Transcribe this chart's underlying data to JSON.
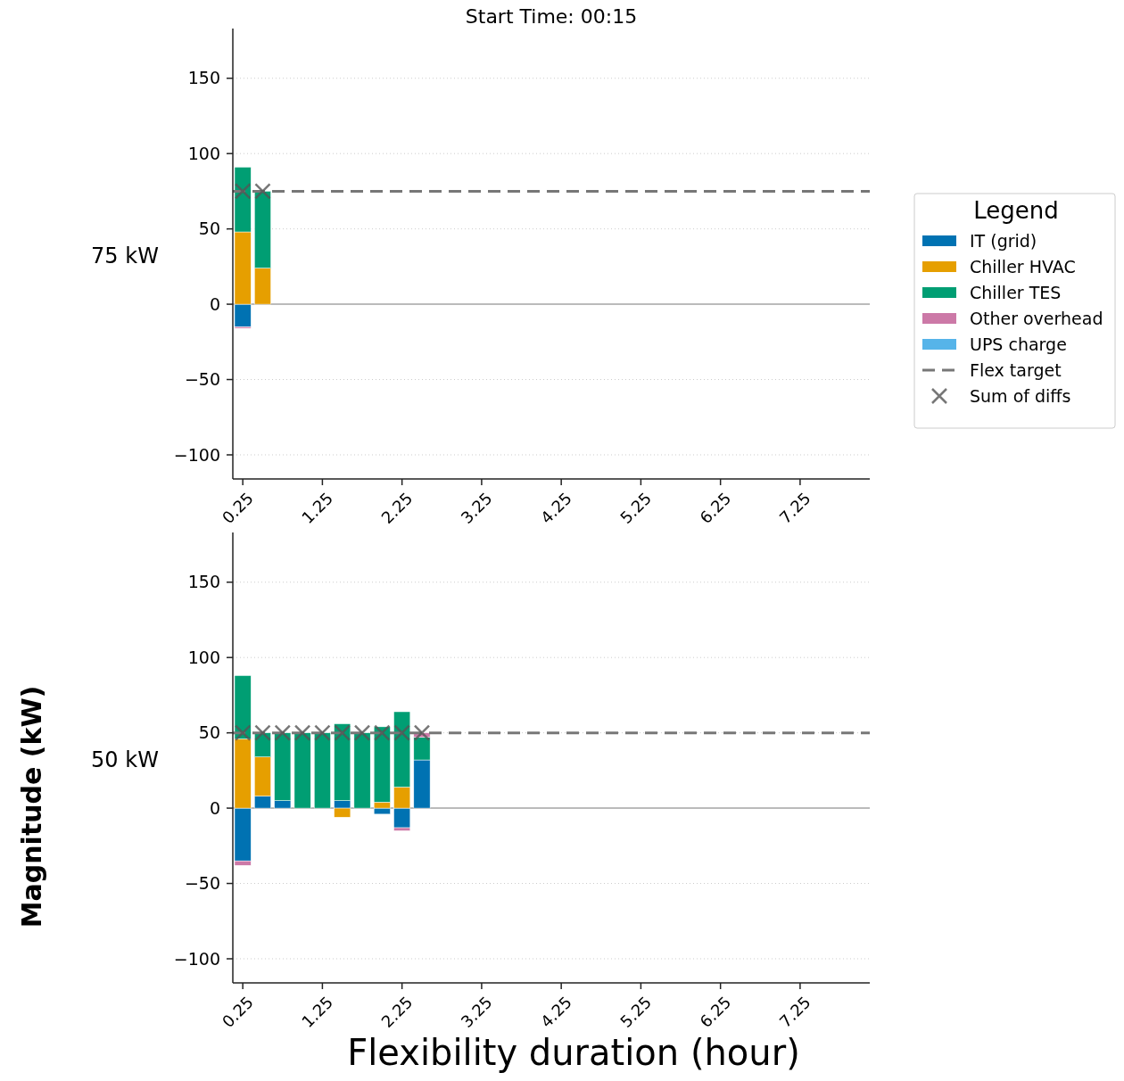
{
  "chart_data": [
    {
      "type": "bar",
      "title": "Start Time: 00:15",
      "stacked": true,
      "x": [
        0.25,
        0.5
      ],
      "xlim": [
        0.125,
        8.125
      ],
      "xticks": [
        0.25,
        1.25,
        2.25,
        3.25,
        4.25,
        5.25,
        6.25,
        7.25
      ],
      "ylim": [
        -116,
        183
      ],
      "yticks": [
        -100,
        -50,
        0,
        50,
        100,
        150
      ],
      "grid": "y",
      "legend": "right",
      "legend_title": "Legend",
      "annotations": [
        "75 kW"
      ],
      "series": [
        {
          "name": "IT (grid)",
          "color": "#0072b2",
          "values": [
            -15,
            0
          ]
        },
        {
          "name": "Chiller HVAC",
          "color": "#e69f00",
          "values": [
            48,
            24
          ]
        },
        {
          "name": "Chiller TES",
          "color": "#009e73",
          "values": [
            43,
            51
          ]
        },
        {
          "name": "Other overhead",
          "color": "#cc79a7",
          "values": [
            -1,
            0
          ]
        },
        {
          "name": "UPS charge",
          "color": "#56b4e9",
          "values": [
            0,
            0
          ]
        },
        {
          "name": "Sum of diffs",
          "type": "scatter",
          "marker": "cross",
          "color": "#555555",
          "values": [
            75,
            75
          ]
        }
      ],
      "ref_lines": [
        {
          "axis": "y",
          "value": 0,
          "color": "#bbbbbb",
          "line_style": "solid"
        },
        {
          "axis": "y",
          "value": 75,
          "label": "Flex target",
          "color": "#777777",
          "line_style": "dashed"
        }
      ]
    },
    {
      "type": "bar",
      "xlabel": "Flexibility duration (hour)",
      "ylabel": "Magnitude (kW)",
      "stacked": true,
      "x": [
        0.25,
        0.5,
        0.75,
        1.0,
        1.25,
        1.5,
        1.75,
        2.0,
        2.25,
        2.5
      ],
      "xlim": [
        0.125,
        8.125
      ],
      "xticks": [
        0.25,
        1.25,
        2.25,
        3.25,
        4.25,
        5.25,
        6.25,
        7.25
      ],
      "ylim": [
        -116,
        183
      ],
      "yticks": [
        -100,
        -50,
        0,
        50,
        100,
        150
      ],
      "grid": "y",
      "annotations": [
        "50 kW"
      ],
      "series": [
        {
          "color": "#0072b2",
          "values": [
            -35,
            8,
            5,
            0,
            0,
            5,
            0,
            -4,
            -13,
            32
          ]
        },
        {
          "color": "#e69f00",
          "values": [
            46,
            26,
            0,
            0,
            0,
            -6,
            0,
            4,
            14,
            0
          ]
        },
        {
          "color": "#009e73",
          "values": [
            42,
            16,
            45,
            50,
            50,
            51,
            50,
            50,
            50,
            15
          ]
        },
        {
          "color": "#cc79a7",
          "values": [
            -3,
            0,
            0,
            0,
            0,
            0,
            0,
            0,
            -2,
            3
          ]
        },
        {
          "type": "scatter",
          "marker": "cross",
          "color": "#555555",
          "values": [
            50,
            50,
            50,
            50,
            50,
            50,
            50,
            50,
            50,
            50
          ]
        }
      ],
      "ref_lines": [
        {
          "axis": "y",
          "value": 0,
          "color": "#bbbbbb",
          "line_style": "solid"
        },
        {
          "axis": "y",
          "value": 50,
          "color": "#777777",
          "line_style": "dashed"
        }
      ]
    }
  ]
}
